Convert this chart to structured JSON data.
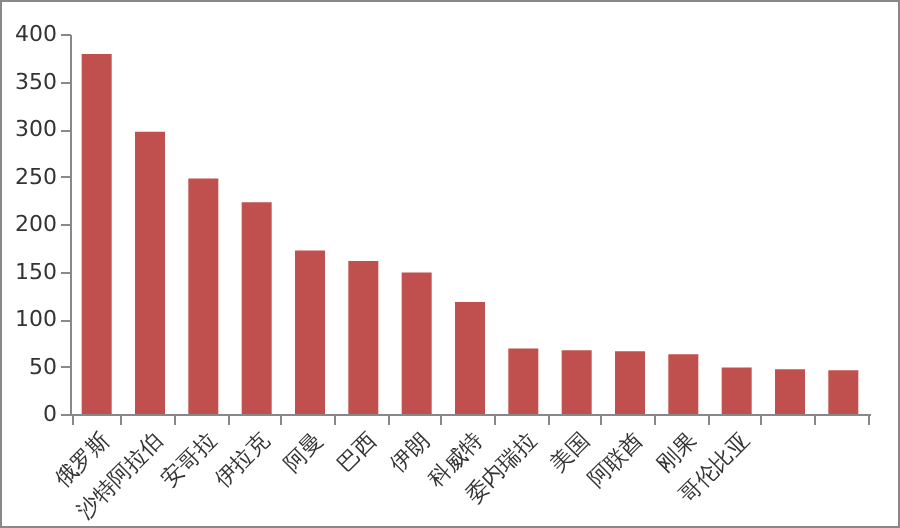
{
  "chart_data": {
    "type": "bar",
    "categories": [
      "俄罗斯",
      "沙特阿拉伯",
      "安哥拉",
      "伊拉克",
      "阿曼",
      "巴西",
      "伊朗",
      "科威特",
      "委内瑞拉",
      "美国",
      "阿联酋",
      "刚果",
      "哥伦比亚",
      null,
      null
    ],
    "values": [
      379,
      297,
      248,
      223,
      172,
      161,
      149,
      118,
      69,
      67,
      66,
      63,
      49,
      47,
      46
    ],
    "color": "#c0504d",
    "ylim": [
      0,
      400
    ],
    "yticks": [
      0,
      50,
      100,
      150,
      200,
      250,
      300,
      350,
      400
    ],
    "grid": false
  }
}
